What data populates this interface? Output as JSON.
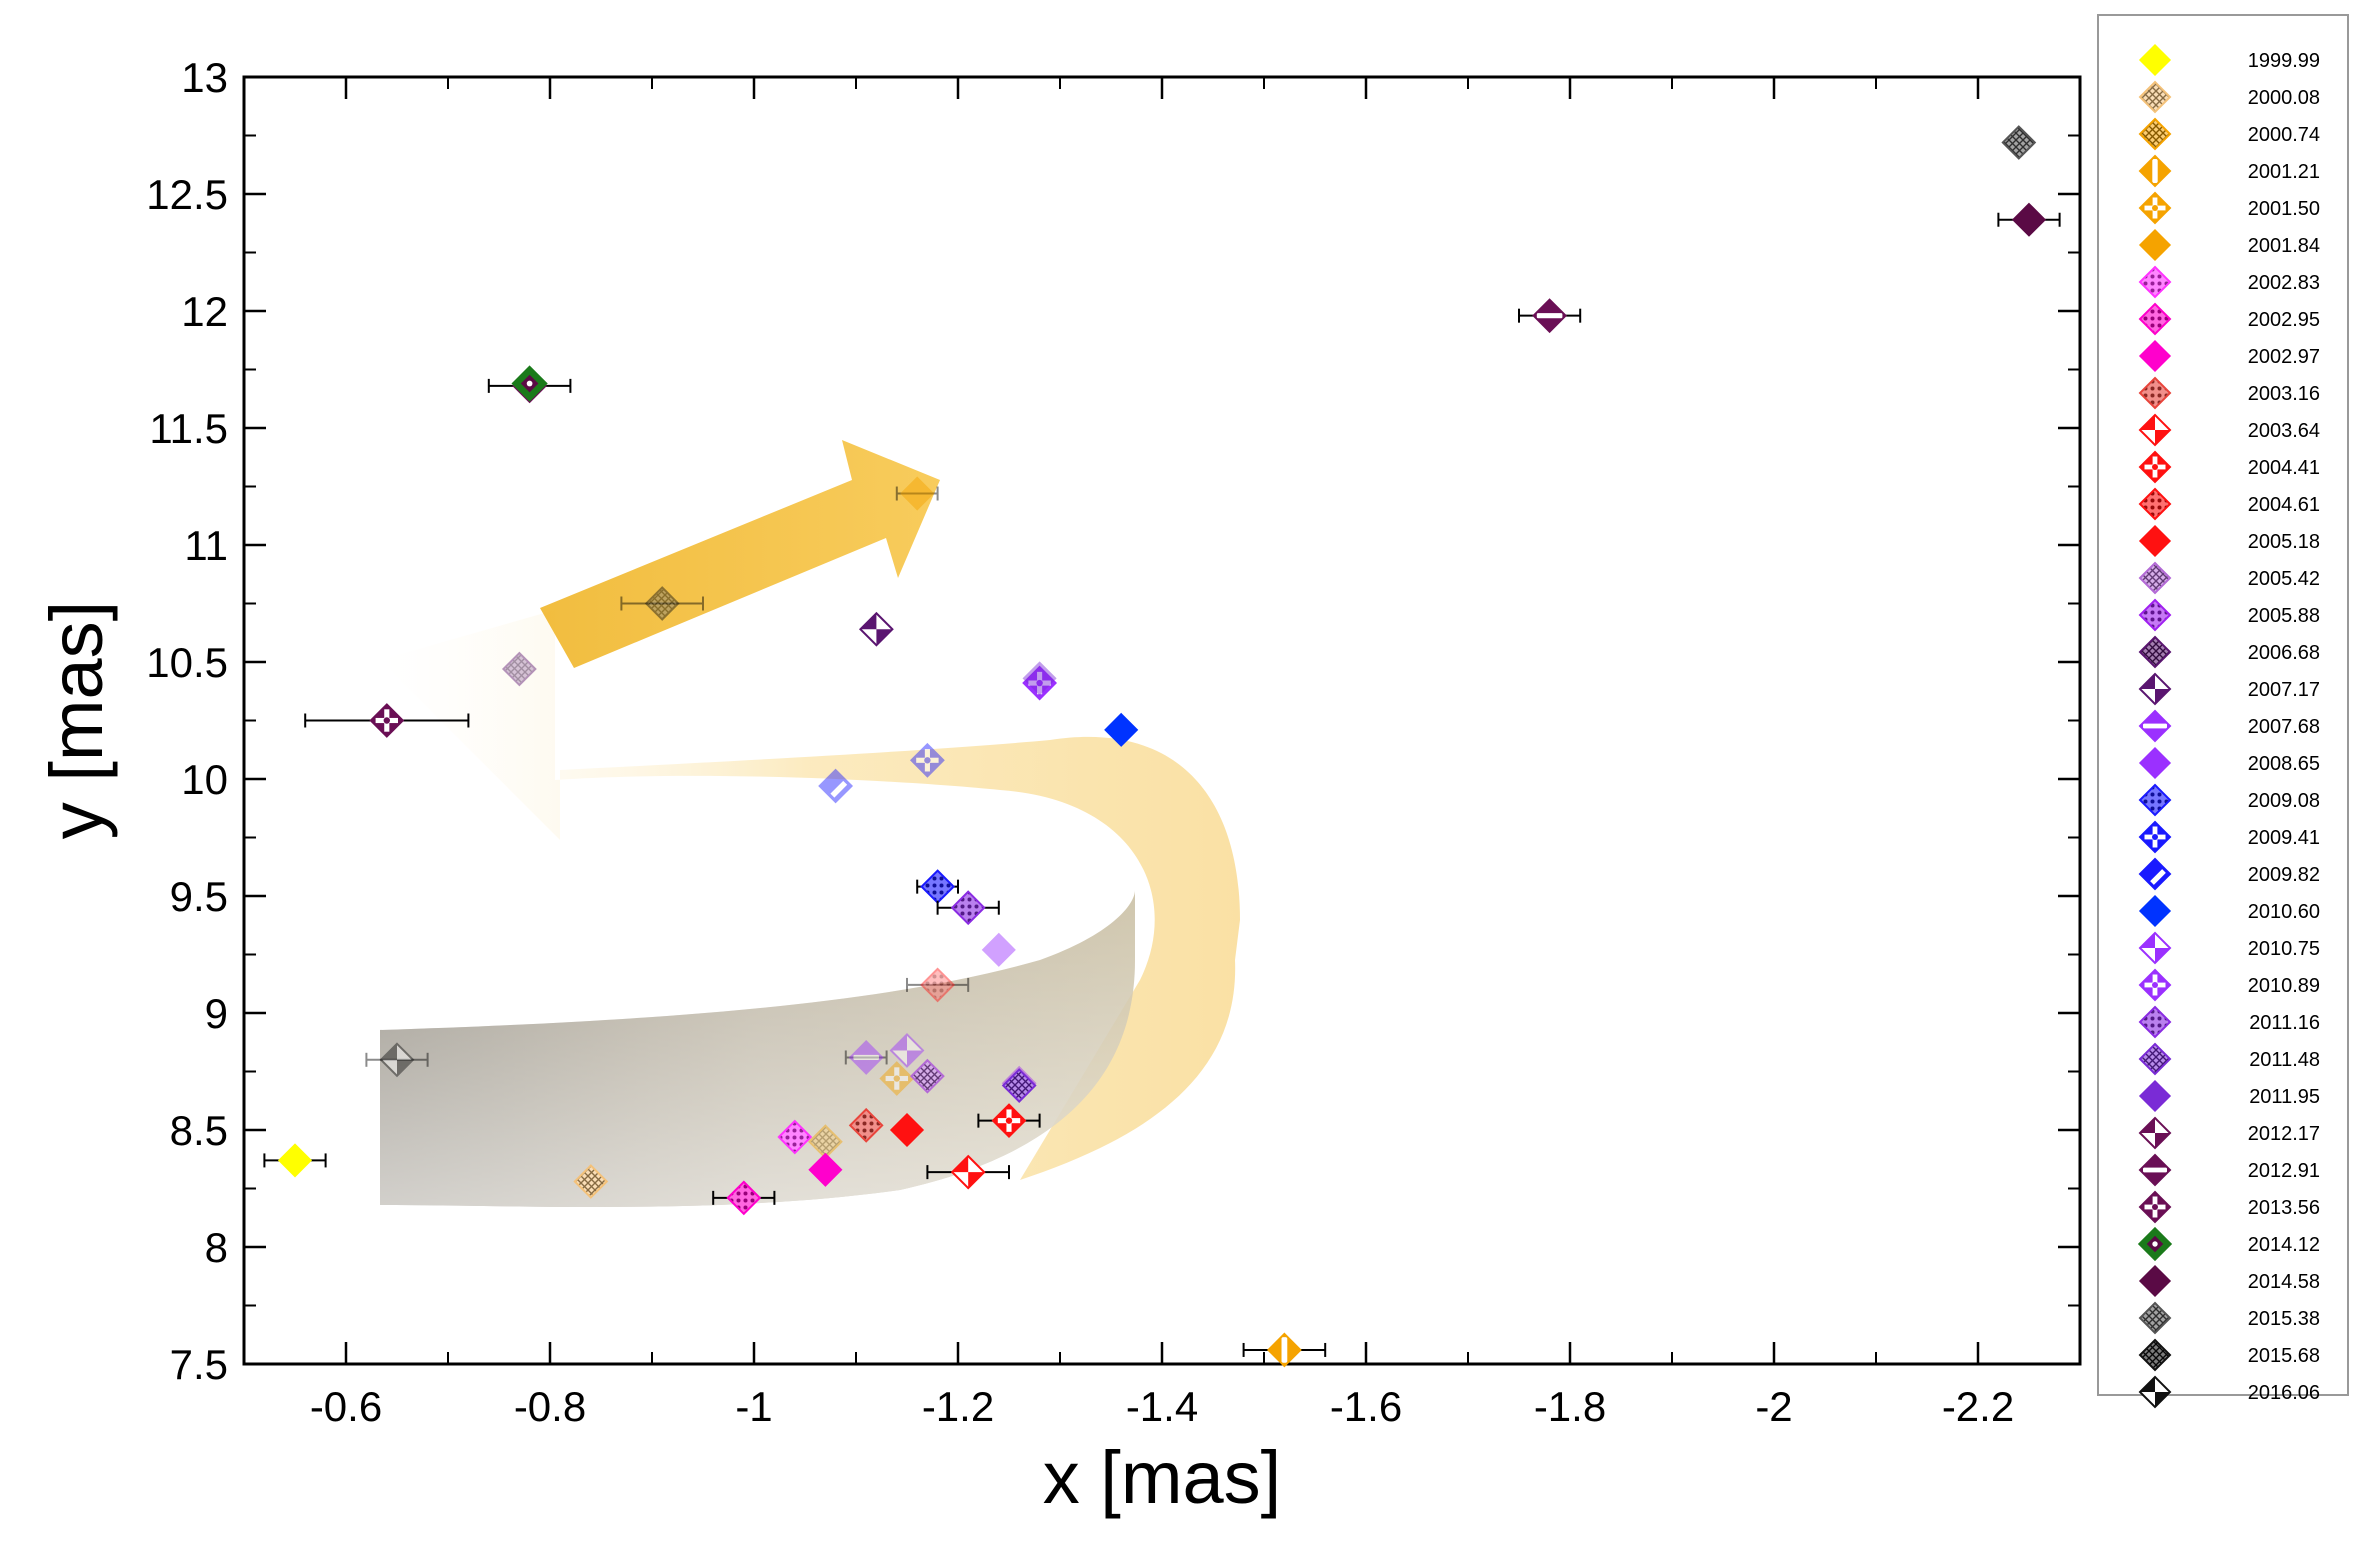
{
  "chart_data": {
    "type": "scatter",
    "xlabel": "x [mas]",
    "ylabel": "y [mas]",
    "xlim": [
      -0.5,
      -2.3
    ],
    "ylim": [
      7.5,
      13
    ],
    "x_ticks": [
      -0.6,
      -0.8,
      -1,
      -1.2,
      -1.4,
      -1.6,
      -1.8,
      -2,
      -2.2
    ],
    "y_ticks": [
      7.5,
      8,
      8.5,
      9,
      9.5,
      10,
      10.5,
      11,
      11.5,
      12,
      12.5,
      13
    ],
    "x_tick_labels": [
      "-0.6",
      "-0.8",
      "-1",
      "-1.2",
      "-1.4",
      "-1.6",
      "-1.8",
      "-2",
      "-2.2"
    ],
    "y_tick_labels": [
      "7.5",
      "8",
      "8.5",
      "9",
      "9.5",
      "10",
      "10.5",
      "11",
      "11.5",
      "12",
      "12.5",
      "13"
    ],
    "legend_position": "right, outside plot",
    "series": [
      {
        "name": "1999.99",
        "color": "#ffff00",
        "style": "solid",
        "x": -0.55,
        "y": 8.37,
        "xerr": 0.03,
        "faded": false
      },
      {
        "name": "2000.08",
        "color": "#f4c27a",
        "style": "hatch",
        "x": -0.84,
        "y": 8.28,
        "xerr": 0,
        "faded": false
      },
      {
        "name": "2000.74",
        "color": "#f5a300",
        "style": "hatch",
        "x": -1.07,
        "y": 8.45,
        "xerr": 0,
        "faded": true
      },
      {
        "name": "2001.21",
        "color": "#f5a300",
        "style": "vbar",
        "x": -1.52,
        "y": 7.56,
        "xerr": 0.04,
        "faded": false
      },
      {
        "name": "2001.50",
        "color": "#f5a300",
        "style": "cross",
        "x": -1.14,
        "y": 8.72,
        "xerr": 0,
        "faded": true
      },
      {
        "name": "2001.84",
        "color": "#f5a300",
        "style": "solid",
        "x": -1.16,
        "y": 11.22,
        "xerr": 0.02,
        "faded": true
      },
      {
        "name": "2002.83",
        "color": "#ff33ff",
        "style": "dots",
        "x": -1.04,
        "y": 8.47,
        "xerr": 0,
        "faded": false
      },
      {
        "name": "2002.95",
        "color": "#ff00cc",
        "style": "dots",
        "x": -0.99,
        "y": 8.21,
        "xerr": 0.03,
        "faded": false
      },
      {
        "name": "2002.97",
        "color": "#ff00cc",
        "style": "solid",
        "x": -1.07,
        "y": 8.33,
        "xerr": 0,
        "faded": false
      },
      {
        "name": "2003.16",
        "color": "#e8453c",
        "style": "dots",
        "x": -1.11,
        "y": 8.52,
        "xerr": 0,
        "faded": false
      },
      {
        "name": "2003.64",
        "color": "#ff1111",
        "style": "check",
        "x": -1.21,
        "y": 8.32,
        "xerr": 0.04,
        "faded": false
      },
      {
        "name": "2004.41",
        "color": "#ff1111",
        "style": "cross",
        "x": -1.25,
        "y": 8.54,
        "xerr": 0.03,
        "faded": false
      },
      {
        "name": "2004.61",
        "color": "#ff1111",
        "style": "dots",
        "x": -1.18,
        "y": 9.12,
        "xerr": 0.03,
        "faded": true
      },
      {
        "name": "2005.18",
        "color": "#ff1111",
        "style": "solid",
        "x": -1.15,
        "y": 8.5,
        "xerr": 0,
        "faded": false
      },
      {
        "name": "2005.42",
        "color": "#b36ad6",
        "style": "hatch",
        "x": -1.17,
        "y": 8.73,
        "xerr": 0,
        "faded": false
      },
      {
        "name": "2005.88",
        "color": "#a020f0",
        "style": "dots",
        "x": -1.26,
        "y": 8.7,
        "xerr": 0,
        "faded": true
      },
      {
        "name": "2006.68",
        "color": "#5a1570",
        "style": "hatch",
        "x": -0.77,
        "y": 10.47,
        "xerr": 0,
        "faded": true
      },
      {
        "name": "2007.17",
        "color": "#5a1570",
        "style": "check",
        "x": -1.12,
        "y": 10.64,
        "xerr": 0,
        "faded": false
      },
      {
        "name": "2007.68",
        "color": "#9b30ff",
        "style": "hbar",
        "x": -1.11,
        "y": 8.81,
        "xerr": 0.02,
        "faded": true
      },
      {
        "name": "2008.65",
        "color": "#9b30ff",
        "style": "solid",
        "x": -1.24,
        "y": 9.27,
        "xerr": 0,
        "faded": true
      },
      {
        "name": "2009.08",
        "color": "#1a1aff",
        "style": "dots",
        "x": -1.18,
        "y": 9.54,
        "xerr": 0.02,
        "faded": false
      },
      {
        "name": "2009.41",
        "color": "#1a1aff",
        "style": "cross",
        "x": -1.17,
        "y": 10.08,
        "xerr": 0,
        "faded": true
      },
      {
        "name": "2009.82",
        "color": "#1a1aff",
        "style": "diag",
        "x": -1.08,
        "y": 9.97,
        "xerr": 0,
        "faded": true
      },
      {
        "name": "2010.60",
        "color": "#0033ff",
        "style": "solid",
        "x": -1.36,
        "y": 10.21,
        "xerr": 0,
        "faded": false
      },
      {
        "name": "2010.75",
        "color": "#9b30ff",
        "style": "check",
        "x": -1.15,
        "y": 8.84,
        "xerr": 0,
        "faded": true
      },
      {
        "name": "2010.89",
        "color": "#9b30ff",
        "style": "cross",
        "x": -1.28,
        "y": 10.41,
        "xerr": 0,
        "faded": false
      },
      {
        "name": "2011.16",
        "color": "#8a2be2",
        "style": "dots",
        "x": -1.21,
        "y": 9.45,
        "xerr": 0.03,
        "faded": false
      },
      {
        "name": "2011.48",
        "color": "#7a2bd6",
        "style": "hatch",
        "x": -1.26,
        "y": 8.69,
        "xerr": 0,
        "faded": false
      },
      {
        "name": "2011.95",
        "color": "#7a2bd6",
        "style": "solid",
        "x": -1.28,
        "y": 10.43,
        "xerr": 0,
        "faded": true
      },
      {
        "name": "2012.17",
        "color": "#6a0f55",
        "style": "check",
        "x": -0.78,
        "y": 11.68,
        "xerr": 0.04,
        "faded": false
      },
      {
        "name": "2012.91",
        "color": "#6a0f55",
        "style": "hbar",
        "x": -1.78,
        "y": 11.98,
        "xerr": 0.03,
        "faded": false
      },
      {
        "name": "2013.56",
        "color": "#6a0f55",
        "style": "cross",
        "x": -0.64,
        "y": 10.25,
        "xerr": 0.08,
        "faded": false
      },
      {
        "name": "2014.12",
        "color": "#1a7a1a",
        "style": "outline",
        "x": -0.78,
        "y": 11.69,
        "xerr": 0,
        "faded": false
      },
      {
        "name": "2014.58",
        "color": "#5a0a45",
        "style": "solid",
        "x": -2.25,
        "y": 12.39,
        "xerr": 0.03,
        "faded": false
      },
      {
        "name": "2015.38",
        "color": "#555555",
        "style": "hatch",
        "x": -2.24,
        "y": 12.72,
        "xerr": 0,
        "faded": false
      },
      {
        "name": "2015.68",
        "color": "#111111",
        "style": "hatch",
        "x": -0.91,
        "y": 10.75,
        "xerr": 0.04,
        "faded": true
      },
      {
        "name": "2016.06",
        "color": "#111111",
        "style": "check",
        "x": -0.65,
        "y": 8.8,
        "xerr": 0.03,
        "faded": true
      }
    ]
  }
}
